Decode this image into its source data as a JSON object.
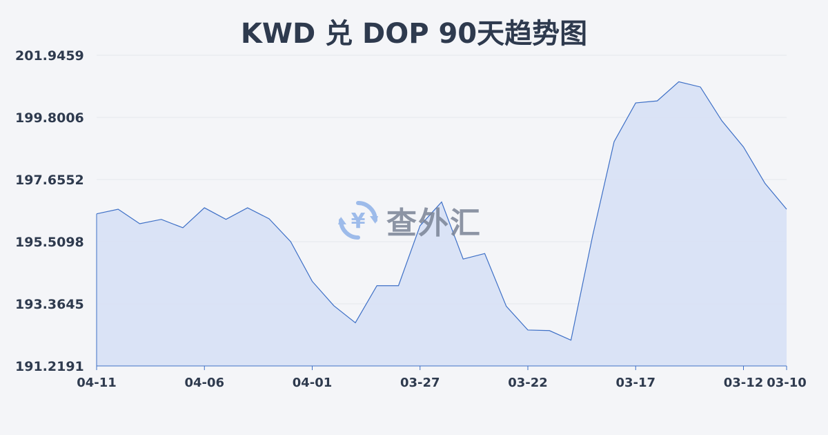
{
  "chart_data": {
    "type": "area",
    "title": "KWD 兑 DOP 90天趋势图",
    "y_tick_labels": [
      "201.9459",
      "199.8006",
      "197.6552",
      "195.5098",
      "193.3645",
      "191.2191"
    ],
    "ylim": [
      191.2191,
      201.9459
    ],
    "x_tick_labels": [
      "04-11",
      "04-06",
      "04-01",
      "03-27",
      "03-22",
      "03-17",
      "03-12",
      "03-10"
    ],
    "x_tick_index": [
      0,
      5,
      10,
      15,
      20,
      25,
      30,
      32
    ],
    "series": [
      {
        "values": [
          196.47,
          196.63,
          196.13,
          196.28,
          195.99,
          196.68,
          196.28,
          196.68,
          196.3,
          195.51,
          194.14,
          193.3,
          192.71,
          193.99,
          193.99,
          196.06,
          196.88,
          194.91,
          195.1,
          193.28,
          192.46,
          192.44,
          192.11,
          195.7,
          198.96,
          200.3,
          200.37,
          201.03,
          200.85,
          199.68,
          198.78,
          197.52,
          196.63
        ]
      }
    ],
    "grid": true,
    "line_color": "#3d6fc6",
    "fill_color": "#d7e1f5"
  },
  "watermark": {
    "text": "查外汇",
    "icon": "yen-exchange-icon",
    "icon_glyph": "¥",
    "color": "#7a8496",
    "icon_color": "#8fb1e8"
  }
}
